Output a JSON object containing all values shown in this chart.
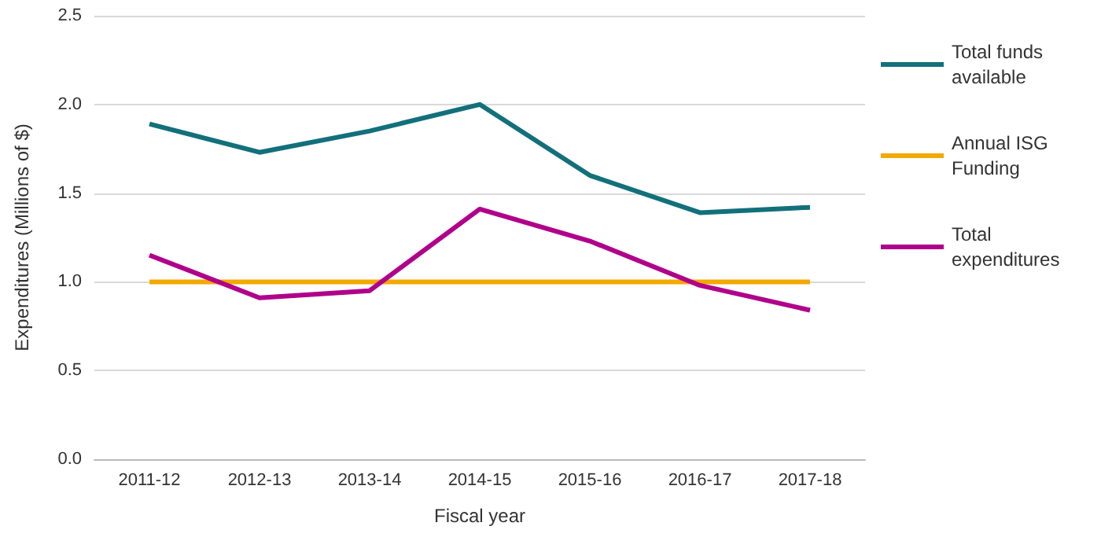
{
  "chart_data": {
    "type": "line",
    "xlabel": "Fiscal year",
    "ylabel": "Expenditures (Millions of $)",
    "categories": [
      "2011-12",
      "2012-13",
      "2013-14",
      "2014-15",
      "2015-16",
      "2016-17",
      "2017-18"
    ],
    "series": [
      {
        "name": "Total funds available",
        "color": "#12707b",
        "values": [
          1.89,
          1.73,
          1.85,
          2.0,
          1.6,
          1.39,
          1.42
        ]
      },
      {
        "name": "Annual ISG Funding",
        "color": "#f2a900",
        "values": [
          1.0,
          1.0,
          1.0,
          1.0,
          1.0,
          1.0,
          1.0
        ]
      },
      {
        "name": "Total expenditures",
        "color": "#b0008b",
        "values": [
          1.15,
          0.91,
          0.95,
          1.41,
          1.23,
          0.98,
          0.84
        ]
      }
    ],
    "ylim": [
      0,
      2.5
    ],
    "yticks": [
      {
        "value": 0,
        "label": "0.0"
      },
      0.5,
      {
        "value": 1,
        "label": "1.0"
      },
      1.5,
      {
        "value": 2,
        "label": "2.0"
      },
      2.5
    ],
    "grid": "y",
    "legend": "right",
    "marker": "none",
    "line_style": "solid"
  }
}
